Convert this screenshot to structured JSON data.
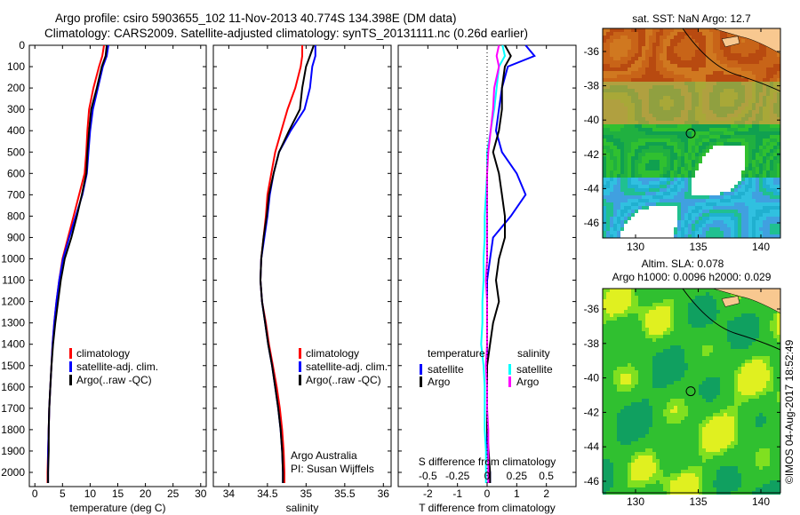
{
  "title_line1": "Argo profile: csiro 5903655_102 11-Nov-2013 40.774S 134.398E (DM data)",
  "title_line2": "Climatology: CARS2009. Satellite-adjusted climatology: synTS_20131111.nc (0.26d earlier)",
  "colors": {
    "climatology": "#ff0000",
    "satellite": "#0000ff",
    "argo": "#000000",
    "sal_satellite": "#00ffff",
    "sal_argo": "#ff00ff",
    "land": "#f8c890"
  },
  "chart_data": [
    {
      "type": "line",
      "name": "temperature",
      "xlabel": "temperature (deg C)",
      "xlim": [
        -1,
        31
      ],
      "ylim": [
        2070,
        0
      ],
      "xticks": [
        "0",
        "5",
        "10",
        "15",
        "20",
        "25",
        "30"
      ],
      "yticks": [
        "0",
        "100",
        "200",
        "300",
        "400",
        "500",
        "600",
        "700",
        "800",
        "900",
        "1000",
        "1100",
        "1200",
        "1300",
        "1400",
        "1500",
        "1600",
        "1700",
        "1800",
        "1900",
        "2000"
      ],
      "depth": [
        0,
        50,
        100,
        200,
        300,
        400,
        500,
        600,
        700,
        800,
        900,
        1000,
        1100,
        1200,
        1300,
        1400,
        1500,
        1600,
        1700,
        1800,
        1900,
        2000,
        2050
      ],
      "series": [
        {
          "name": "climatology",
          "color": "#ff0000",
          "values": [
            12.5,
            12.2,
            11.6,
            10.6,
            9.8,
            9.5,
            9.3,
            9.0,
            8.0,
            7.0,
            6.0,
            5.0,
            4.4,
            3.9,
            3.5,
            3.2,
            3.0,
            2.8,
            2.6,
            2.5,
            2.4,
            2.3,
            2.3
          ]
        },
        {
          "name": "satellite-adj. clim.",
          "color": "#0000ff",
          "values": [
            13.3,
            13.0,
            12.3,
            11.4,
            10.5,
            10.0,
            9.7,
            9.4,
            8.6,
            7.4,
            6.2,
            5.1,
            4.4,
            3.9,
            3.5,
            3.2,
            3.0,
            2.8,
            2.6,
            2.5,
            2.4,
            2.4,
            2.4
          ]
        },
        {
          "name": "Argo(..raw -QC)",
          "color": "#000000",
          "values": [
            13.0,
            12.8,
            12.1,
            11.2,
            10.2,
            9.8,
            9.5,
            9.3,
            8.5,
            7.6,
            6.6,
            5.4,
            4.7,
            4.2,
            3.7,
            3.3,
            3.0,
            2.8,
            2.6,
            2.5,
            2.5,
            2.4,
            2.4
          ]
        }
      ],
      "legend": "center-left"
    },
    {
      "type": "line",
      "name": "salinity",
      "xlabel": "salinity",
      "xlim": [
        33.8,
        36.1
      ],
      "ylim": [
        2070,
        0
      ],
      "xticks": [
        "34",
        "34.5",
        "35",
        "35.5",
        "36"
      ],
      "depth": [
        0,
        50,
        100,
        200,
        300,
        400,
        500,
        600,
        700,
        800,
        900,
        1000,
        1100,
        1200,
        1300,
        1400,
        1500,
        1600,
        1700,
        1800,
        1900,
        2000,
        2050
      ],
      "series": [
        {
          "name": "climatology",
          "color": "#ff0000",
          "values": [
            34.95,
            34.95,
            34.93,
            34.86,
            34.76,
            34.68,
            34.6,
            34.55,
            34.5,
            34.48,
            34.45,
            34.42,
            34.41,
            34.43,
            34.48,
            34.52,
            34.57,
            34.62,
            34.66,
            34.69,
            34.71,
            34.72,
            34.72
          ]
        },
        {
          "name": "satellite-adj. clim.",
          "color": "#0000ff",
          "values": [
            35.12,
            35.12,
            35.08,
            35.05,
            34.98,
            34.8,
            34.65,
            34.58,
            34.53,
            34.5,
            34.46,
            34.42,
            34.41,
            34.43,
            34.47,
            34.51,
            34.56,
            34.6,
            34.64,
            34.67,
            34.69,
            34.7,
            34.7
          ]
        },
        {
          "name": "Argo(..raw -QC)",
          "color": "#000000",
          "values": [
            35.1,
            35.05,
            35.0,
            34.95,
            34.92,
            34.78,
            34.65,
            34.58,
            34.52,
            34.49,
            34.45,
            34.42,
            34.41,
            34.43,
            34.47,
            34.51,
            34.56,
            34.6,
            34.64,
            34.67,
            34.69,
            34.7,
            34.7
          ]
        }
      ],
      "annotation": [
        "Argo Australia",
        "PI: Susan Wijffels"
      ],
      "legend": "center-right"
    },
    {
      "type": "line",
      "name": "differences",
      "xlabel": "T difference from climatology",
      "xlabel_top": "S difference from climatology",
      "xlim": [
        -3,
        3
      ],
      "ylim": [
        2070,
        0
      ],
      "xticks": [
        "-2",
        "-1",
        "0",
        "1",
        "2"
      ],
      "xticks_top": [
        "-0.5",
        "-0.25",
        "0",
        "0.25",
        "0.5"
      ],
      "depth": [
        0,
        50,
        100,
        200,
        300,
        400,
        500,
        600,
        700,
        800,
        900,
        1000,
        1100,
        1200,
        1300,
        1400,
        1500,
        1600,
        1700,
        1800,
        1900,
        2000,
        2050
      ],
      "series": [
        {
          "name": "temperature satellite",
          "color": "#0000ff",
          "unit": "T",
          "values": [
            1.3,
            1.6,
            0.7,
            0.5,
            0.4,
            0.3,
            0.5,
            1.0,
            1.3,
            0.8,
            0.2,
            0.1,
            0.0,
            0.0,
            0.0,
            0.0,
            0.0,
            0.0,
            0.0,
            0.0,
            0.0,
            0.1,
            0.1
          ]
        },
        {
          "name": "temperature Argo",
          "color": "#000000",
          "unit": "T",
          "values": [
            0.6,
            0.8,
            0.6,
            0.5,
            0.5,
            0.4,
            0.2,
            0.4,
            0.5,
            0.6,
            0.6,
            0.4,
            0.3,
            0.4,
            0.2,
            0.1,
            0.0,
            0.0,
            0.0,
            0.0,
            0.05,
            0.1,
            0.1
          ]
        },
        {
          "name": "salinity satellite",
          "color": "#00ffff",
          "unit": "S",
          "values": [
            0.13,
            0.15,
            0.1,
            0.08,
            0.06,
            0.03,
            0.0,
            0.0,
            -0.01,
            -0.02,
            -0.02,
            -0.03,
            -0.03,
            -0.04,
            -0.04,
            -0.05,
            -0.03,
            -0.02,
            -0.02,
            -0.02,
            -0.01,
            -0.01,
            -0.01
          ]
        },
        {
          "name": "salinity Argo",
          "color": "#ff00ff",
          "unit": "S",
          "values": [
            0.1,
            0.08,
            0.1,
            0.06,
            0.05,
            0.03,
            0.01,
            0.0,
            0.0,
            0.0,
            0.0,
            0.0,
            -0.01,
            0.0,
            0.0,
            0.0,
            -0.01,
            0.0,
            0.0,
            0.01,
            0.01,
            0.01,
            0.01
          ]
        }
      ],
      "legend_headers": [
        "temperature",
        "salinity"
      ],
      "legend_labels": [
        "satellite",
        "Argo",
        "satellite",
        "Argo"
      ]
    },
    {
      "type": "heatmap",
      "name": "sst-map",
      "title": "sat. SST: NaN Argo: 12.7",
      "xticks": [
        "130",
        "135",
        "140"
      ],
      "yticks": [
        "-36",
        "-38",
        "-40",
        "-42",
        "-44",
        "-46"
      ],
      "marker": {
        "lon": 134.398,
        "lat": -40.774
      }
    },
    {
      "type": "heatmap",
      "name": "sla-map",
      "title": [
        "Altim. SLA: 0.078",
        "Argo h1000: 0.0096 h2000: 0.029"
      ],
      "xticks": [
        "130",
        "135",
        "140"
      ],
      "yticks": [
        "-36",
        "-38",
        "-40",
        "-42",
        "-44",
        "-46"
      ],
      "marker": {
        "lon": 134.398,
        "lat": -40.774
      }
    }
  ],
  "credit": "©IMOS 04-Aug-2017 18:52:49"
}
